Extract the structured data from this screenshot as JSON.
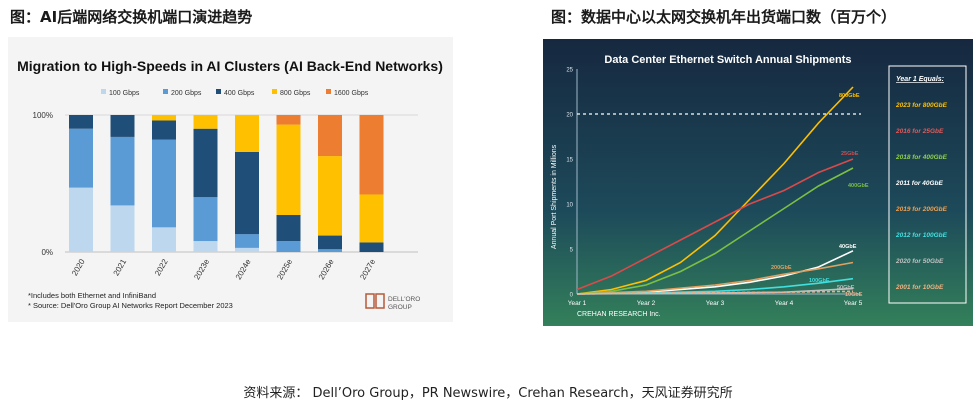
{
  "captions": {
    "left": "图：AI后端网络交换机端口演进趋势",
    "right": "图：数据中心以太网交换机年出货端口数（百万个）",
    "source": "资料来源： Dell’Oro Group，PR Newswire，Crehan Research，天风证券研究所"
  },
  "colors": {
    "s100": "#bdd7ee",
    "s200": "#5b9bd5",
    "s400": "#1f4e79",
    "s800": "#ffc000",
    "s1600": "#ed7d31",
    "dark_bg_top": "#16283f",
    "dark_bg_bottom": "#33805a"
  },
  "chart_data": [
    {
      "type": "bar",
      "stacked": true,
      "title": "Migration to High-Speeds in AI Clusters (AI Back-End Networks)",
      "categories": [
        "2020",
        "2021",
        "2022",
        "2023e",
        "2024e",
        "2025e",
        "2026e",
        "2027e"
      ],
      "y_tick_labels": [
        "0%",
        "100%"
      ],
      "ylim": [
        0,
        100
      ],
      "legend_position": "top",
      "series": [
        {
          "name": "100 Gbps",
          "color": "#bdd7ee",
          "values": [
            47,
            34,
            18,
            8,
            3,
            0,
            0,
            0
          ]
        },
        {
          "name": "200 Gbps",
          "color": "#5b9bd5",
          "values": [
            43,
            50,
            64,
            32,
            10,
            8,
            2,
            0
          ]
        },
        {
          "name": "400 Gbps",
          "color": "#1f4e79",
          "values": [
            10,
            16,
            14,
            50,
            60,
            19,
            10,
            7
          ]
        },
        {
          "name": "800 Gbps",
          "color": "#ffc000",
          "values": [
            0,
            0,
            4,
            10,
            27,
            66,
            58,
            35
          ]
        },
        {
          "name": "1600 Gbps",
          "color": "#ed7d31",
          "values": [
            0,
            0,
            0,
            0,
            0,
            7,
            30,
            58
          ]
        }
      ],
      "footnotes": [
        "*Includes both Ethernet and InfiniBand",
        "* Source: Dell'Oro Group AI Networks Report December 2023"
      ],
      "logo_text": [
        "DELL'ORO",
        "GROUP"
      ]
    },
    {
      "type": "line",
      "title": "Data Center Ethernet Switch Annual Shipments",
      "ylabel": "Annual Port Shipments in Millions",
      "x": [
        "Year 1",
        "Year 2",
        "Year 3",
        "Year 4",
        "Year 5"
      ],
      "y_ticks": [
        0,
        5,
        10,
        15,
        20,
        25
      ],
      "ylim": [
        0,
        25
      ],
      "reference_line": 20,
      "footer": "CREHAN RESEARCH Inc.",
      "legend_title": "Year 1 Equals:",
      "legend": [
        {
          "text": "2023 for 800GbE",
          "color": "#ffc000"
        },
        {
          "text": "2016 for 25GbE",
          "color": "#e05a5a"
        },
        {
          "text": "2018 for 400GbE",
          "color": "#8ed04a"
        },
        {
          "text": "2011 for 40GbE",
          "color": "#ffffff"
        },
        {
          "text": "2019 for 200GbE",
          "color": "#f0a050"
        },
        {
          "text": "2012 for 100GbE",
          "color": "#40e0e0"
        },
        {
          "text": "2020 for 50GbE",
          "color": "#c0c0c0"
        },
        {
          "text": "2001 for 10GbE",
          "color": "#f0b080"
        }
      ],
      "series": [
        {
          "name": "800GbE",
          "color": "#ffc000",
          "points": [
            [
              1,
              0
            ],
            [
              1.5,
              0.5
            ],
            [
              2,
              1.5
            ],
            [
              2.5,
              3.5
            ],
            [
              3,
              6.5
            ],
            [
              3.5,
              10.5
            ],
            [
              4,
              14.5
            ],
            [
              4.5,
              19
            ],
            [
              5,
              23
            ]
          ]
        },
        {
          "name": "25GbE",
          "color": "#d94a4a",
          "points": [
            [
              1,
              0.5
            ],
            [
              1.5,
              2
            ],
            [
              2,
              4
            ],
            [
              2.5,
              6
            ],
            [
              3,
              8
            ],
            [
              3.5,
              10
            ],
            [
              4,
              11.5
            ],
            [
              4.5,
              13.5
            ],
            [
              5,
              15
            ]
          ]
        },
        {
          "name": "400GbE",
          "color": "#7cc043",
          "points": [
            [
              1,
              0
            ],
            [
              1.5,
              0.3
            ],
            [
              2,
              1
            ],
            [
              2.5,
              2.5
            ],
            [
              3,
              4.5
            ],
            [
              3.5,
              7
            ],
            [
              4,
              9.5
            ],
            [
              4.5,
              12
            ],
            [
              5,
              14
            ]
          ]
        },
        {
          "name": "40GbE",
          "color": "#ffffff",
          "points": [
            [
              1,
              0
            ],
            [
              2,
              0.2
            ],
            [
              3,
              0.8
            ],
            [
              3.5,
              1.3
            ],
            [
              4,
              2
            ],
            [
              4.5,
              3
            ],
            [
              5,
              4.8
            ]
          ]
        },
        {
          "name": "200GbE",
          "color": "#e0a060",
          "points": [
            [
              1,
              0
            ],
            [
              2,
              0.3
            ],
            [
              3,
              1
            ],
            [
              3.5,
              1.5
            ],
            [
              4,
              2.2
            ],
            [
              4.5,
              2.8
            ],
            [
              5,
              3.5
            ]
          ]
        },
        {
          "name": "100GbE",
          "color": "#40e0e0",
          "points": [
            [
              1,
              0
            ],
            [
              2,
              0.1
            ],
            [
              3,
              0.3
            ],
            [
              3.5,
              0.5
            ],
            [
              4,
              0.8
            ],
            [
              4.5,
              1.2
            ],
            [
              5,
              1.7
            ]
          ]
        },
        {
          "name": "50GbE",
          "color": "#c0c0c0",
          "points": [
            [
              1,
              0
            ],
            [
              3,
              0.1
            ],
            [
              4,
              0.2
            ],
            [
              4.5,
              0.4
            ],
            [
              5,
              0.6
            ]
          ]
        },
        {
          "name": "10GbE",
          "color": "#e8b090",
          "dashed": true,
          "points": [
            [
              1,
              0
            ],
            [
              2,
              0.1
            ],
            [
              3,
              0.15
            ],
            [
              4,
              0.2
            ],
            [
              5,
              0.3
            ]
          ]
        }
      ]
    }
  ]
}
